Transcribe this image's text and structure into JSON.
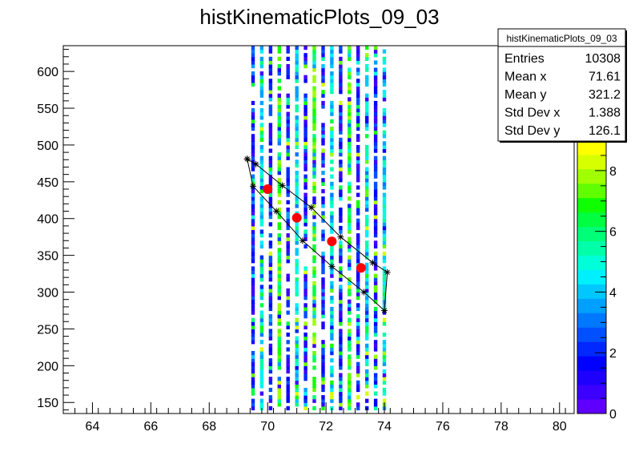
{
  "chart_data": {
    "type": "heatmap",
    "title": "histKinematicPlots_09_03",
    "xlabel": "",
    "ylabel": "",
    "xlim": [
      63,
      80.5
    ],
    "ylim": [
      135,
      635
    ],
    "x_ticks": [
      64,
      66,
      68,
      70,
      72,
      74,
      76,
      78,
      80
    ],
    "y_ticks": [
      150,
      200,
      250,
      300,
      350,
      400,
      450,
      500,
      550,
      600
    ],
    "z_ticks": [
      0,
      2,
      4,
      6,
      8
    ],
    "zlim": [
      0,
      9
    ],
    "palette": [
      "#5f00ff",
      "#3c00ff",
      "#1e00ff",
      "#0000ff",
      "#0028ff",
      "#0050ff",
      "#0078ff",
      "#00a0ff",
      "#00c8ff",
      "#00f0ff",
      "#00ffd8",
      "#00ffa8",
      "#00ff78",
      "#00ff40",
      "#10ff00",
      "#60ff00",
      "#a0ff00",
      "#d8ff00",
      "#ffff00"
    ],
    "heatmap_columns": [
      {
        "x": 69.5,
        "dominant": "blue"
      },
      {
        "x": 69.8,
        "dominant": "cyan"
      },
      {
        "x": 70.1,
        "dominant": "blue"
      },
      {
        "x": 70.4,
        "dominant": "green"
      },
      {
        "x": 70.7,
        "dominant": "blue"
      },
      {
        "x": 71.0,
        "dominant": "cyan"
      },
      {
        "x": 71.3,
        "dominant": "blue"
      },
      {
        "x": 71.6,
        "dominant": "green"
      },
      {
        "x": 71.9,
        "dominant": "blue"
      },
      {
        "x": 72.2,
        "dominant": "cyan"
      },
      {
        "x": 72.5,
        "dominant": "blue"
      },
      {
        "x": 72.8,
        "dominant": "green"
      },
      {
        "x": 73.1,
        "dominant": "blue"
      },
      {
        "x": 73.4,
        "dominant": "cyan"
      },
      {
        "x": 73.7,
        "dominant": "blue"
      },
      {
        "x": 74.0,
        "dominant": "cyan"
      }
    ],
    "series": [
      {
        "kind": "markers",
        "color": "#ff0000",
        "points": [
          [
            70.0,
            440
          ],
          [
            71.0,
            401
          ],
          [
            72.2,
            369
          ],
          [
            73.2,
            333
          ]
        ]
      },
      {
        "kind": "polygon",
        "color": "#000000",
        "points": [
          [
            69.3,
            481
          ],
          [
            69.6,
            474
          ],
          [
            70.5,
            445
          ],
          [
            71.5,
            415
          ],
          [
            72.5,
            375
          ],
          [
            73.6,
            340
          ],
          [
            74.1,
            327
          ],
          [
            74.0,
            275
          ],
          [
            73.3,
            300
          ],
          [
            72.2,
            335
          ],
          [
            71.2,
            370
          ],
          [
            70.3,
            410
          ],
          [
            69.5,
            444
          ],
          [
            69.3,
            481
          ]
        ]
      }
    ],
    "stats_box": {
      "title": "histKinematicPlots_09_03",
      "rows": [
        {
          "label": "Entries",
          "value": "10308"
        },
        {
          "label": "Mean x",
          "value": "71.61"
        },
        {
          "label": "Mean y",
          "value": "321.2"
        },
        {
          "label": "Std Dev x",
          "value": "1.388"
        },
        {
          "label": "Std Dev y",
          "value": "126.1"
        }
      ]
    }
  }
}
